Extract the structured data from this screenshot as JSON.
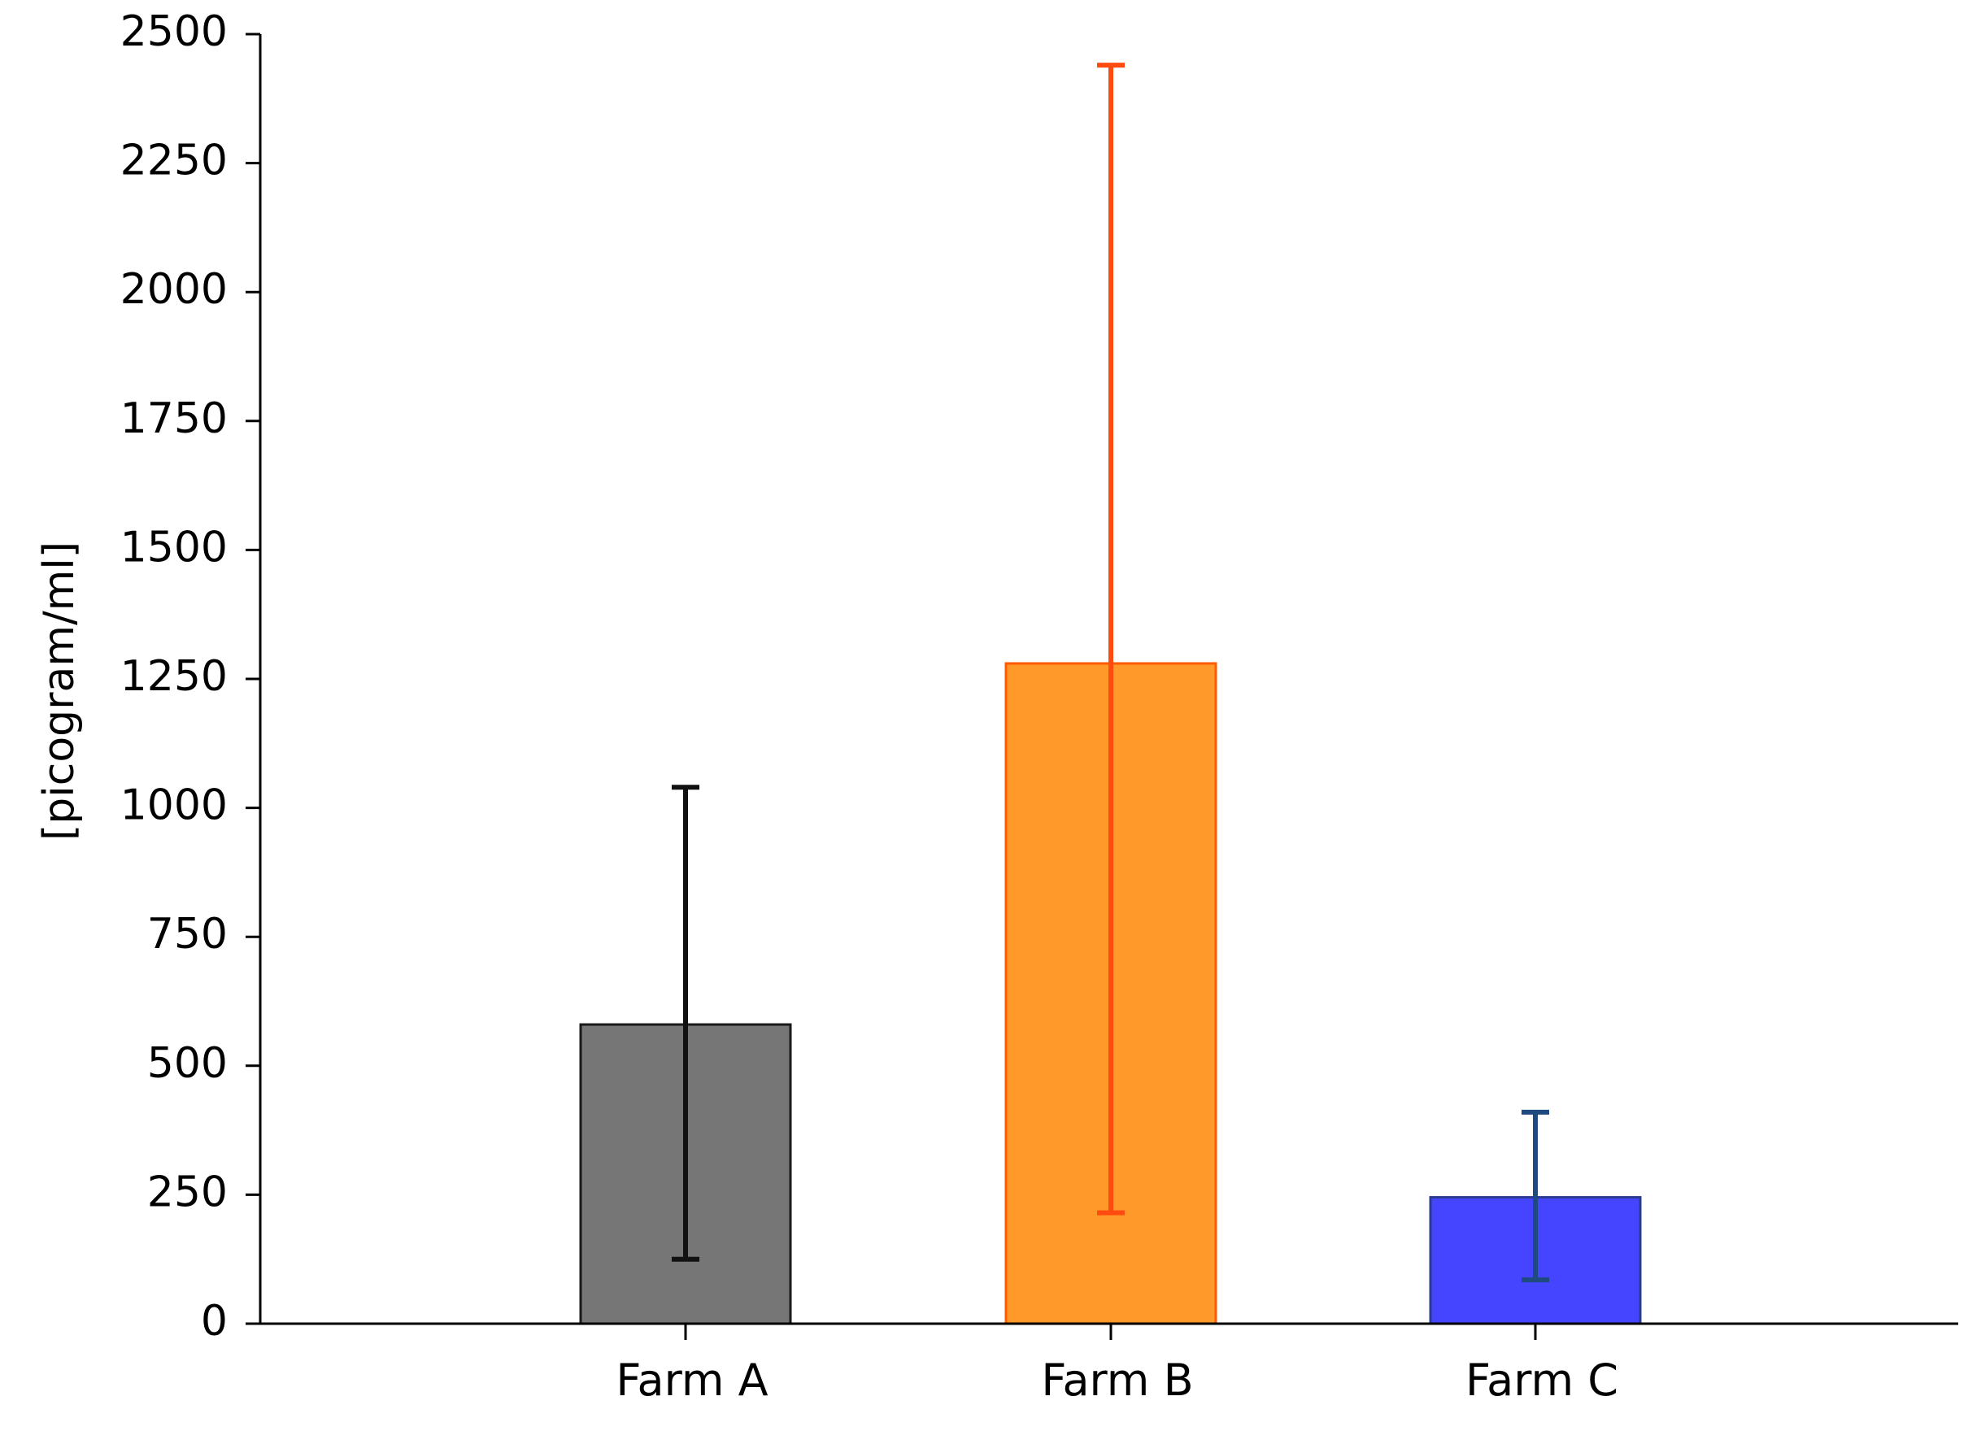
{
  "chart_data": {
    "type": "bar",
    "title": "",
    "xlabel": "",
    "ylabel": "[picogram/ml]",
    "ylim": [
      0,
      2500
    ],
    "yticks": [
      0,
      250,
      500,
      750,
      1000,
      1250,
      1500,
      1750,
      2000,
      2250,
      2500
    ],
    "categories": [
      "Farm A",
      "Farm B",
      "Farm C"
    ],
    "values": [
      580,
      1280,
      245
    ],
    "error_low": [
      125,
      215,
      85
    ],
    "error_high": [
      1040,
      2440,
      410
    ],
    "bar_colors": [
      "#767676",
      "#FF9A2A",
      "#4545FF"
    ],
    "bar_edge_colors": [
      "#1a1a1a",
      "#FF5A00",
      "#2A3C90"
    ],
    "error_colors": [
      "#111111",
      "#FF4A10",
      "#1E4A80"
    ],
    "grid": false,
    "legend": "none"
  }
}
